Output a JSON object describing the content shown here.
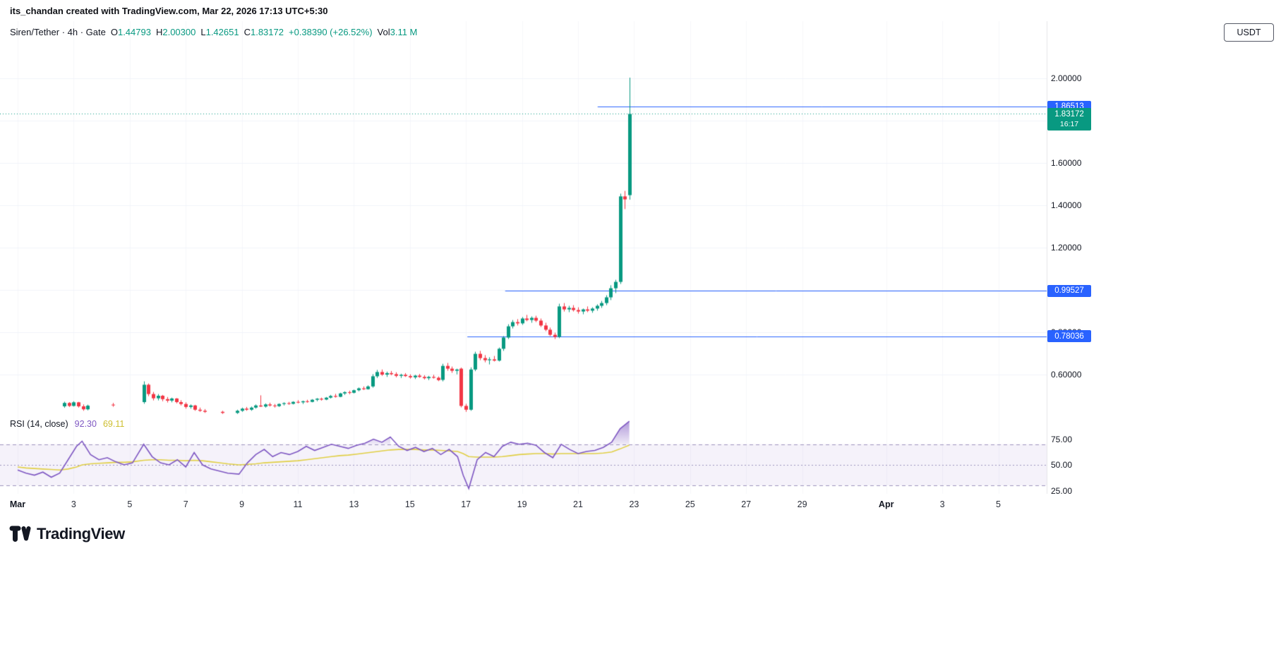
{
  "attribution": "its_chandan created with TradingView.com, Mar 22, 2026 17:13 UTC+5:30",
  "header": {
    "symbol_line": "Siren/Tether · 4h · Gate",
    "ohlc": [
      {
        "label": "O",
        "value": "1.44793"
      },
      {
        "label": "H",
        "value": "2.00300"
      },
      {
        "label": "L",
        "value": "1.42651"
      },
      {
        "label": "C",
        "value": "1.83172"
      }
    ],
    "change": "+0.38390 (+26.52%)",
    "vol_label": "Vol",
    "vol_value": "3.11 M",
    "currency_button": "USDT"
  },
  "colors": {
    "up": "#089981",
    "down": "#F23645",
    "line_blue": "#2962FF",
    "rsi": "#7E57C2",
    "rsi_ma": "#E0CF45",
    "grid_h": "#f0f3fa",
    "grid_v": "#f6f7fa",
    "band_fill": "rgba(126,87,194,0.08)",
    "band_line": "#9d93bd",
    "axis_edge": "rgba(150,155,170,0.25)"
  },
  "chart_data": {
    "type": "candlestick",
    "title": "Siren/Tether · 4h · Gate",
    "x_unit": "days since Mar 1, 4h candles",
    "ylim": [
      0.4,
      2.06
    ],
    "last": {
      "open": 1.44793,
      "high": 2.003,
      "low": 1.42651,
      "close": 1.83172,
      "change": "+0.38390 (+26.52%)",
      "volume": "3.11 M"
    },
    "price_ticks": [
      {
        "label": "2.00000",
        "value": 2.0
      },
      {
        "label": "1.80000",
        "value": 1.8
      },
      {
        "label": "1.60000",
        "value": 1.6
      },
      {
        "label": "1.40000",
        "value": 1.4
      },
      {
        "label": "1.20000",
        "value": 1.2
      },
      {
        "label": "1.00000",
        "value": 1.0
      },
      {
        "label": "0.80000",
        "value": 0.8
      },
      {
        "label": "0.60000",
        "value": 0.6
      }
    ],
    "time_ticks": [
      {
        "label": "Mar",
        "t": 0,
        "bold": true
      },
      {
        "label": "3",
        "t": 2
      },
      {
        "label": "5",
        "t": 4
      },
      {
        "label": "7",
        "t": 6
      },
      {
        "label": "9",
        "t": 8
      },
      {
        "label": "11",
        "t": 10
      },
      {
        "label": "13",
        "t": 12
      },
      {
        "label": "15",
        "t": 14
      },
      {
        "label": "17",
        "t": 16
      },
      {
        "label": "19",
        "t": 18
      },
      {
        "label": "21",
        "t": 20
      },
      {
        "label": "23",
        "t": 22
      },
      {
        "label": "25",
        "t": 24
      },
      {
        "label": "27",
        "t": 26
      },
      {
        "label": "29",
        "t": 28
      },
      {
        "label": "Apr",
        "t": 31,
        "bold": true
      },
      {
        "label": "3",
        "t": 33
      },
      {
        "label": "5",
        "t": 35
      }
    ],
    "price_lines": [
      {
        "label": "1.86513",
        "value": 1.86513,
        "start_t": 20.7
      },
      {
        "label": "0.99527",
        "value": 0.99527,
        "start_t": 17.4
      },
      {
        "label": "0.78036",
        "value": 0.78036,
        "start_t": 16.05
      }
    ],
    "current_price": {
      "label": "1.83172",
      "value": 1.83172,
      "countdown": "16:17"
    },
    "candles": [
      [
        1.67,
        0.45,
        0.472,
        0.443,
        0.466
      ],
      [
        1.83,
        0.466,
        0.47,
        0.447,
        0.452
      ],
      [
        2.0,
        0.452,
        0.474,
        0.449,
        0.469
      ],
      [
        2.17,
        0.469,
        0.471,
        0.444,
        0.45
      ],
      [
        2.33,
        0.45,
        0.459,
        0.429,
        0.436
      ],
      [
        2.5,
        0.436,
        0.458,
        0.431,
        0.453
      ],
      [
        3.4,
        0.458,
        0.466,
        0.448,
        0.455
      ],
      [
        4.5,
        0.47,
        0.568,
        0.462,
        0.552
      ],
      [
        4.67,
        0.552,
        0.558,
        0.498,
        0.508
      ],
      [
        4.83,
        0.508,
        0.518,
        0.478,
        0.488
      ],
      [
        5.0,
        0.488,
        0.508,
        0.478,
        0.5
      ],
      [
        5.17,
        0.5,
        0.504,
        0.474,
        0.484
      ],
      [
        5.33,
        0.484,
        0.494,
        0.468,
        0.477
      ],
      [
        5.5,
        0.477,
        0.491,
        0.469,
        0.487
      ],
      [
        5.67,
        0.487,
        0.489,
        0.464,
        0.47
      ],
      [
        5.83,
        0.47,
        0.479,
        0.454,
        0.461
      ],
      [
        6.0,
        0.461,
        0.469,
        0.439,
        0.447
      ],
      [
        6.17,
        0.447,
        0.459,
        0.439,
        0.454
      ],
      [
        6.33,
        0.454,
        0.457,
        0.429,
        0.434
      ],
      [
        6.5,
        0.434,
        0.444,
        0.424,
        0.429
      ],
      [
        6.67,
        0.429,
        0.437,
        0.419,
        0.424
      ],
      [
        7.3,
        0.424,
        0.429,
        0.414,
        0.419
      ],
      [
        7.83,
        0.419,
        0.434,
        0.414,
        0.429
      ],
      [
        8.0,
        0.429,
        0.444,
        0.424,
        0.439
      ],
      [
        8.17,
        0.439,
        0.447,
        0.429,
        0.434
      ],
      [
        8.33,
        0.434,
        0.449,
        0.429,
        0.444
      ],
      [
        8.5,
        0.444,
        0.459,
        0.439,
        0.454
      ],
      [
        8.67,
        0.454,
        0.502,
        0.447,
        0.449
      ],
      [
        8.83,
        0.449,
        0.464,
        0.444,
        0.459
      ],
      [
        9.0,
        0.459,
        0.467,
        0.449,
        0.454
      ],
      [
        9.17,
        0.454,
        0.461,
        0.444,
        0.451
      ],
      [
        9.33,
        0.451,
        0.464,
        0.447,
        0.461
      ],
      [
        9.5,
        0.461,
        0.469,
        0.454,
        0.465
      ],
      [
        9.67,
        0.465,
        0.471,
        0.457,
        0.462
      ],
      [
        9.83,
        0.462,
        0.474,
        0.459,
        0.471
      ],
      [
        10.0,
        0.471,
        0.479,
        0.464,
        0.469
      ],
      [
        10.17,
        0.469,
        0.477,
        0.461,
        0.474
      ],
      [
        10.33,
        0.474,
        0.481,
        0.467,
        0.471
      ],
      [
        10.5,
        0.471,
        0.484,
        0.469,
        0.481
      ],
      [
        10.67,
        0.481,
        0.489,
        0.474,
        0.486
      ],
      [
        10.83,
        0.486,
        0.491,
        0.477,
        0.482
      ],
      [
        11.0,
        0.482,
        0.494,
        0.479,
        0.491
      ],
      [
        11.17,
        0.491,
        0.504,
        0.487,
        0.499
      ],
      [
        11.33,
        0.499,
        0.509,
        0.491,
        0.495
      ],
      [
        11.5,
        0.495,
        0.514,
        0.493,
        0.511
      ],
      [
        11.67,
        0.511,
        0.521,
        0.504,
        0.517
      ],
      [
        11.83,
        0.517,
        0.524,
        0.507,
        0.514
      ],
      [
        12.0,
        0.514,
        0.529,
        0.511,
        0.526
      ],
      [
        12.17,
        0.526,
        0.539,
        0.521,
        0.535
      ],
      [
        12.33,
        0.535,
        0.544,
        0.527,
        0.531
      ],
      [
        12.5,
        0.531,
        0.549,
        0.529,
        0.544
      ],
      [
        12.67,
        0.544,
        0.602,
        0.538,
        0.592
      ],
      [
        12.83,
        0.592,
        0.622,
        0.584,
        0.612
      ],
      [
        13.0,
        0.612,
        0.624,
        0.594,
        0.6
      ],
      [
        13.17,
        0.6,
        0.614,
        0.589,
        0.607
      ],
      [
        13.33,
        0.607,
        0.617,
        0.597,
        0.602
      ],
      [
        13.5,
        0.602,
        0.611,
        0.587,
        0.594
      ],
      [
        13.67,
        0.594,
        0.604,
        0.584,
        0.599
      ],
      [
        13.83,
        0.599,
        0.607,
        0.589,
        0.593
      ],
      [
        14.0,
        0.593,
        0.601,
        0.581,
        0.587
      ],
      [
        14.17,
        0.587,
        0.599,
        0.579,
        0.595
      ],
      [
        14.33,
        0.595,
        0.603,
        0.585,
        0.589
      ],
      [
        14.5,
        0.589,
        0.597,
        0.577,
        0.583
      ],
      [
        14.67,
        0.583,
        0.594,
        0.574,
        0.589
      ],
      [
        14.83,
        0.589,
        0.599,
        0.581,
        0.585
      ],
      [
        15.0,
        0.585,
        0.591,
        0.569,
        0.574
      ],
      [
        15.17,
        0.575,
        0.651,
        0.568,
        0.641
      ],
      [
        15.33,
        0.641,
        0.655,
        0.618,
        0.628
      ],
      [
        15.5,
        0.628,
        0.638,
        0.608,
        0.618
      ],
      [
        15.67,
        0.618,
        0.628,
        0.601,
        0.624
      ],
      [
        15.83,
        0.628,
        0.633,
        0.445,
        0.452
      ],
      [
        16.0,
        0.452,
        0.462,
        0.424,
        0.434
      ],
      [
        16.17,
        0.434,
        0.634,
        0.429,
        0.624
      ],
      [
        16.33,
        0.624,
        0.708,
        0.616,
        0.698
      ],
      [
        16.5,
        0.698,
        0.712,
        0.668,
        0.678
      ],
      [
        16.67,
        0.678,
        0.692,
        0.658,
        0.668
      ],
      [
        16.83,
        0.668,
        0.682,
        0.648,
        0.672
      ],
      [
        17.0,
        0.672,
        0.688,
        0.662,
        0.666
      ],
      [
        17.17,
        0.666,
        0.728,
        0.662,
        0.722
      ],
      [
        17.33,
        0.722,
        0.782,
        0.712,
        0.775
      ],
      [
        17.5,
        0.775,
        0.838,
        0.768,
        0.828
      ],
      [
        17.67,
        0.828,
        0.858,
        0.818,
        0.848
      ],
      [
        17.83,
        0.848,
        0.862,
        0.832,
        0.842
      ],
      [
        18.0,
        0.842,
        0.872,
        0.835,
        0.865
      ],
      [
        18.17,
        0.865,
        0.882,
        0.852,
        0.858
      ],
      [
        18.33,
        0.858,
        0.875,
        0.845,
        0.868
      ],
      [
        18.5,
        0.868,
        0.878,
        0.848,
        0.855
      ],
      [
        18.67,
        0.855,
        0.865,
        0.825,
        0.832
      ],
      [
        18.83,
        0.832,
        0.845,
        0.805,
        0.812
      ],
      [
        19.0,
        0.812,
        0.822,
        0.782,
        0.788
      ],
      [
        19.17,
        0.788,
        0.798,
        0.768,
        0.778
      ],
      [
        19.33,
        0.778,
        0.935,
        0.772,
        0.922
      ],
      [
        19.5,
        0.922,
        0.938,
        0.898,
        0.908
      ],
      [
        19.67,
        0.908,
        0.925,
        0.895,
        0.915
      ],
      [
        19.83,
        0.915,
        0.928,
        0.898,
        0.905
      ],
      [
        20.0,
        0.905,
        0.918,
        0.888,
        0.898
      ],
      [
        20.17,
        0.898,
        0.912,
        0.885,
        0.908
      ],
      [
        20.33,
        0.908,
        0.922,
        0.895,
        0.902
      ],
      [
        20.5,
        0.902,
        0.918,
        0.892,
        0.912
      ],
      [
        20.67,
        0.912,
        0.932,
        0.902,
        0.925
      ],
      [
        20.83,
        0.925,
        0.948,
        0.915,
        0.938
      ],
      [
        21.0,
        0.938,
        0.975,
        0.928,
        0.965
      ],
      [
        21.17,
        0.965,
        1.022,
        0.952,
        1.008
      ],
      [
        21.33,
        1.008,
        1.048,
        0.985,
        1.038
      ],
      [
        21.5,
        1.038,
        1.455,
        1.028,
        1.442
      ],
      [
        21.67,
        1.442,
        1.468,
        1.382,
        1.428
      ],
      [
        21.83,
        1.44793,
        2.003,
        1.42651,
        1.83172
      ]
    ]
  },
  "rsi": {
    "legend_title": "RSI (14, close)",
    "value_main": "92.30",
    "value_ma": "69.11",
    "ticks": [
      {
        "label": "75.00",
        "value": 75
      },
      {
        "label": "50.00",
        "value": 50
      },
      {
        "label": "25.00",
        "value": 25
      }
    ],
    "bands": {
      "upper": 70,
      "middle": 50,
      "lower": 30
    },
    "series": [
      [
        0.0,
        45,
        48
      ],
      [
        0.3,
        42,
        47
      ],
      [
        0.6,
        40,
        46.5
      ],
      [
        0.9,
        43,
        46
      ],
      [
        1.2,
        38,
        45.5
      ],
      [
        1.5,
        42,
        45
      ],
      [
        1.8,
        55,
        46
      ],
      [
        2.1,
        68,
        48
      ],
      [
        2.3,
        73,
        50
      ],
      [
        2.6,
        60,
        51
      ],
      [
        2.9,
        55,
        51.5
      ],
      [
        3.2,
        57,
        52
      ],
      [
        3.5,
        53,
        52.5
      ],
      [
        3.8,
        50,
        52.5
      ],
      [
        4.1,
        52,
        53
      ],
      [
        4.5,
        70,
        54.5
      ],
      [
        4.8,
        58,
        55
      ],
      [
        5.1,
        52,
        55
      ],
      [
        5.4,
        50,
        54.5
      ],
      [
        5.7,
        55,
        54.5
      ],
      [
        6.0,
        48,
        54
      ],
      [
        6.3,
        62,
        54.5
      ],
      [
        6.6,
        50,
        54
      ],
      [
        6.9,
        46,
        53
      ],
      [
        7.2,
        44,
        52
      ],
      [
        7.5,
        42,
        51
      ],
      [
        7.9,
        41,
        50
      ],
      [
        8.2,
        52,
        50.5
      ],
      [
        8.5,
        60,
        51
      ],
      [
        8.8,
        65,
        52
      ],
      [
        9.1,
        58,
        52.5
      ],
      [
        9.4,
        62,
        53
      ],
      [
        9.7,
        60,
        53.5
      ],
      [
        10.0,
        63,
        54
      ],
      [
        10.3,
        68,
        55
      ],
      [
        10.6,
        64,
        56
      ],
      [
        10.9,
        67,
        57
      ],
      [
        11.2,
        70,
        58
      ],
      [
        11.5,
        68,
        59
      ],
      [
        11.8,
        66,
        59.5
      ],
      [
        12.1,
        69,
        60.5
      ],
      [
        12.4,
        71,
        61.5
      ],
      [
        12.7,
        75,
        62.5
      ],
      [
        13.0,
        72,
        63.5
      ],
      [
        13.3,
        77,
        64.5
      ],
      [
        13.6,
        68,
        65
      ],
      [
        13.9,
        64,
        65
      ],
      [
        14.2,
        67,
        65
      ],
      [
        14.5,
        63,
        64.5
      ],
      [
        14.8,
        66,
        64.5
      ],
      [
        15.1,
        60,
        64
      ],
      [
        15.4,
        65,
        63.5
      ],
      [
        15.7,
        58,
        63
      ],
      [
        15.9,
        40,
        61
      ],
      [
        16.1,
        27,
        58
      ],
      [
        16.4,
        55,
        57.5
      ],
      [
        16.7,
        62,
        57.5
      ],
      [
        17.0,
        58,
        57.5
      ],
      [
        17.3,
        68,
        58
      ],
      [
        17.6,
        72,
        59
      ],
      [
        17.9,
        70,
        60
      ],
      [
        18.2,
        71,
        60.5
      ],
      [
        18.5,
        69,
        61
      ],
      [
        18.8,
        62,
        61
      ],
      [
        19.1,
        57,
        60.5
      ],
      [
        19.4,
        70,
        61
      ],
      [
        19.7,
        65,
        61
      ],
      [
        20.0,
        61,
        61
      ],
      [
        20.3,
        63,
        61
      ],
      [
        20.6,
        64,
        61
      ],
      [
        20.9,
        67,
        61.5
      ],
      [
        21.2,
        72,
        62.5
      ],
      [
        21.5,
        85,
        65.5
      ],
      [
        21.83,
        92.3,
        69.11
      ]
    ]
  },
  "footer": {
    "logo_text": "TradingView"
  }
}
